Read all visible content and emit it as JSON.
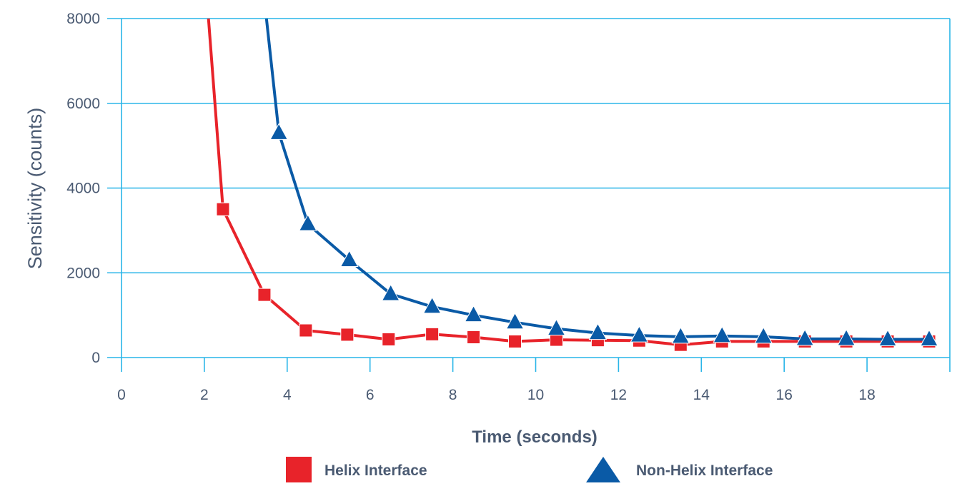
{
  "chart_data": {
    "type": "line",
    "xlabel": "Time (seconds)",
    "ylabel": "Sensitivity (counts)",
    "xlim": [
      0,
      20
    ],
    "ylim": [
      0,
      8000
    ],
    "x_ticks": [
      0,
      2,
      4,
      6,
      8,
      10,
      12,
      14,
      16,
      18
    ],
    "y_ticks": [
      0,
      2000,
      4000,
      6000,
      8000
    ],
    "grid": "horizontal",
    "legend_position": "bottom",
    "series": [
      {
        "name": "Helix Interface",
        "color": "#e8232a",
        "marker": "square",
        "line_points": [
          [
            2.1,
            8000
          ]
        ],
        "points": [
          [
            2.45,
            3500
          ],
          [
            3.45,
            1480
          ],
          [
            4.45,
            640
          ],
          [
            5.45,
            540
          ],
          [
            6.45,
            430
          ],
          [
            7.5,
            550
          ],
          [
            8.5,
            480
          ],
          [
            9.5,
            380
          ],
          [
            10.5,
            420
          ],
          [
            11.5,
            410
          ],
          [
            12.5,
            400
          ],
          [
            13.5,
            300
          ],
          [
            14.5,
            380
          ],
          [
            15.5,
            380
          ],
          [
            16.5,
            380
          ],
          [
            17.5,
            380
          ],
          [
            18.5,
            380
          ],
          [
            19.5,
            380
          ]
        ]
      },
      {
        "name": "Non-Helix Interface",
        "color": "#0a5aa6",
        "marker": "triangle",
        "line_points": [
          [
            3.5,
            8000
          ]
        ],
        "points": [
          [
            3.8,
            5300
          ],
          [
            4.5,
            3150
          ],
          [
            5.5,
            2300
          ],
          [
            6.5,
            1500
          ],
          [
            7.5,
            1200
          ],
          [
            8.5,
            1000
          ],
          [
            9.5,
            830
          ],
          [
            10.5,
            680
          ],
          [
            11.5,
            580
          ],
          [
            12.5,
            520
          ],
          [
            13.5,
            490
          ],
          [
            14.5,
            510
          ],
          [
            15.5,
            490
          ],
          [
            16.5,
            440
          ],
          [
            17.5,
            440
          ],
          [
            18.5,
            430
          ],
          [
            19.5,
            430
          ]
        ]
      }
    ]
  },
  "colors": {
    "grid": "#29b5e8",
    "text": "#4a5a72"
  }
}
